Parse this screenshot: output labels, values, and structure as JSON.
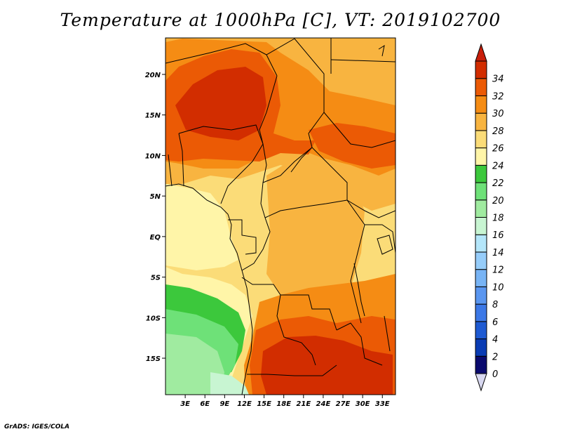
{
  "title": "Temperature at 1000hPa [C], VT: 2019102700",
  "credit": "GrADS: IGES/COLA",
  "map": {
    "lat_labels": [
      "20N",
      "15N",
      "10N",
      "5N",
      "EQ",
      "5S",
      "10S",
      "15S"
    ],
    "lat_values": [
      20,
      15,
      10,
      5,
      0,
      -5,
      -10,
      -15
    ],
    "lon_labels": [
      "3E",
      "6E",
      "9E",
      "12E",
      "15E",
      "18E",
      "21E",
      "24E",
      "27E",
      "30E",
      "33E"
    ],
    "lon_values": [
      3,
      6,
      9,
      12,
      15,
      18,
      21,
      24,
      27,
      30,
      33
    ],
    "lon_range": [
      0,
      35
    ],
    "lat_range": [
      -19.5,
      24.5
    ]
  },
  "colorbar": {
    "labels": [
      "0",
      "2",
      "4",
      "6",
      "8",
      "10",
      "12",
      "14",
      "16",
      "18",
      "20",
      "22",
      "24",
      "26",
      "28",
      "30",
      "32",
      "34"
    ],
    "colors": [
      "#d8d8f0",
      "#0a0a6e",
      "#0a3cb4",
      "#1e5ad2",
      "#3c78e6",
      "#5a96f0",
      "#78b4f5",
      "#96cdfa",
      "#b4e6fa",
      "#c8f5d2",
      "#a0eba0",
      "#6ee178",
      "#3cc83c",
      "#fff5a8",
      "#fbdc78",
      "#f8b440",
      "#f58c14",
      "#eb5a05",
      "#d22d00",
      "#c81e0a"
    ]
  }
}
